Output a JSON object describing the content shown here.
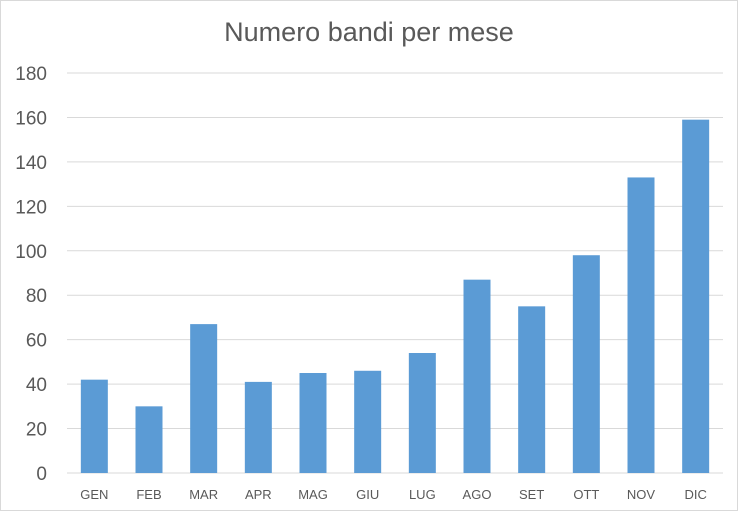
{
  "chart_data": {
    "type": "bar",
    "title": "Numero bandi per mese",
    "xlabel": "",
    "ylabel": "",
    "categories": [
      "GEN",
      "FEB",
      "MAR",
      "APR",
      "MAG",
      "GIU",
      "LUG",
      "AGO",
      "SET",
      "OTT",
      "NOV",
      "DIC"
    ],
    "values": [
      42,
      30,
      67,
      41,
      45,
      46,
      54,
      87,
      75,
      98,
      133,
      159
    ],
    "ylim": [
      0,
      180
    ],
    "yticks": [
      "0",
      "20",
      "40",
      "60",
      "80",
      "100",
      "120",
      "140",
      "160",
      "180"
    ],
    "grid": true,
    "legend": "none",
    "bar_color": "#5b9bd5"
  }
}
